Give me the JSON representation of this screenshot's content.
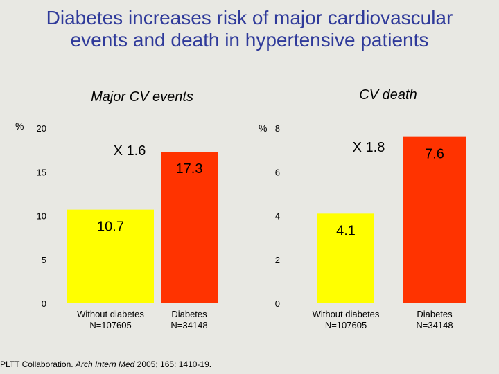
{
  "title": {
    "line1": "Diabetes increases risk of major cardiovascular",
    "line2": "events and death in hypertensive patients"
  },
  "chart_data": [
    {
      "type": "bar",
      "title": "Major CV events",
      "ylabel": "%",
      "ylim": [
        0,
        20
      ],
      "yticks": [
        0,
        5,
        10,
        15,
        20
      ],
      "categories": [
        {
          "line1": "Without diabetes",
          "line2": "N=107605"
        },
        {
          "line1": "Diabetes",
          "line2": "N=34148"
        }
      ],
      "values": [
        10.7,
        17.3
      ],
      "value_labels": [
        "10.7",
        "17.3"
      ],
      "ratio_annotation": "X 1.6",
      "grid": false
    },
    {
      "type": "bar",
      "title": "CV death",
      "ylabel": "%",
      "ylim": [
        0,
        8
      ],
      "yticks": [
        0,
        2,
        4,
        6,
        8
      ],
      "categories": [
        {
          "line1": "Without diabetes",
          "line2": "N=107605"
        },
        {
          "line1": "Diabetes",
          "line2": "N=34148"
        }
      ],
      "values": [
        4.1,
        7.6
      ],
      "value_labels": [
        "4.1",
        "7.6"
      ],
      "ratio_annotation": "X 1.8",
      "grid": false
    }
  ],
  "colors": {
    "without_diabetes": "#ffff00",
    "diabetes": "#ff3300",
    "title_text": "#2f3a9a",
    "background": "#e8e8e3"
  },
  "citation": {
    "prefix": "PLTT Collaboration. ",
    "journal": "Arch Intern Med",
    "suffix": " 2005; 165: 1410-19."
  }
}
